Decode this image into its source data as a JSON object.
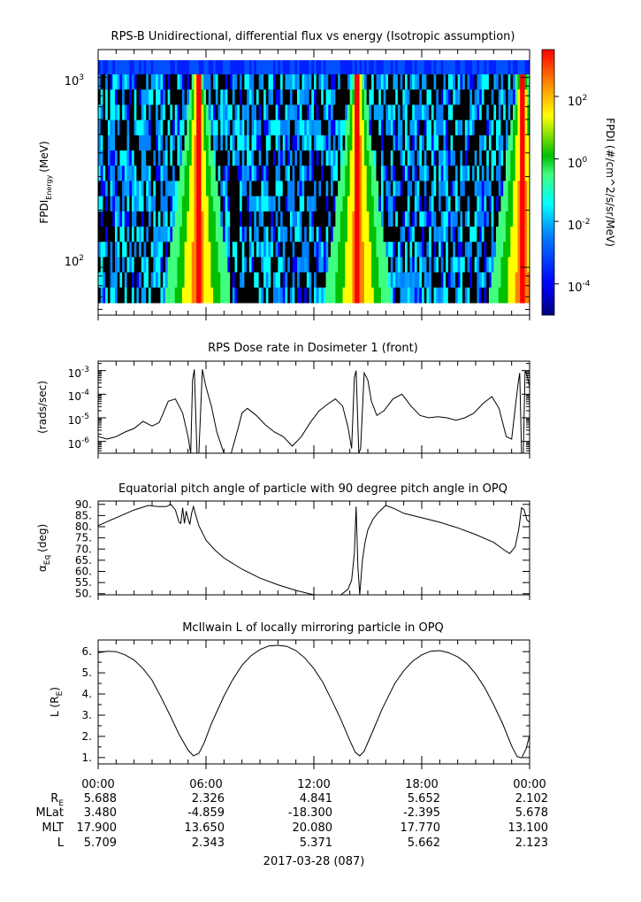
{
  "chart_data": [
    {
      "type": "heatmap",
      "title": "RPS-B  Unidirectional, differential flux vs energy (Isotropic assumption)",
      "ylabel": "FPDI",
      "ylabel_sub": "Energy",
      "ylabel_unit": "(MeV)",
      "y_scale": "log",
      "ylim": [
        56,
        1400
      ],
      "y_ticks": [
        {
          "value": 100,
          "base": "10",
          "exp": "2"
        },
        {
          "value": 1000,
          "base": "10",
          "exp": "3"
        }
      ],
      "xlim_hours": [
        0,
        24
      ],
      "colorbar": {
        "label": "FPDI (#/cm^2/s/sr/MeV)",
        "scale": "log",
        "range_log10": [
          -5,
          3.5
        ],
        "ticks": [
          {
            "exp": "2",
            "log": 2
          },
          {
            "exp": "0",
            "log": 0
          },
          {
            "exp": "-2",
            "log": -2
          },
          {
            "exp": "-4",
            "log": -4
          }
        ],
        "palette": [
          "#00007f",
          "#0000ff",
          "#0080ff",
          "#00ffff",
          "#40ff80",
          "#00c000",
          "#ffff00",
          "#ff8000",
          "#ff0000"
        ]
      },
      "peaks_hours": [
        5.55,
        14.45,
        23.6
      ]
    },
    {
      "type": "line",
      "title": "RPS  Dose rate in Dosimeter 1 (front)",
      "ylabel": "(rads/sec)",
      "y_scale": "log",
      "ylim_log10": [
        -6.5,
        -2.6
      ],
      "y_ticks": [
        {
          "base": "10",
          "exp": "-3",
          "log": -3
        },
        {
          "base": "10",
          "exp": "-4",
          "log": -4
        },
        {
          "base": "10",
          "exp": "-5",
          "log": -5
        },
        {
          "base": "10",
          "exp": "-6",
          "log": -6
        }
      ],
      "x_hours": [
        0,
        0.5,
        1.0,
        1.5,
        2.0,
        2.5,
        3.0,
        3.4,
        3.9,
        4.3,
        4.7,
        5.0,
        5.15,
        5.25,
        5.35,
        5.5,
        5.6,
        5.8,
        6.0,
        6.3,
        6.6,
        7.0,
        7.4,
        7.8,
        8.0,
        8.3,
        8.8,
        9.3,
        9.8,
        10.3,
        10.8,
        11.3,
        11.8,
        12.3,
        12.8,
        13.2,
        13.6,
        13.9,
        14.1,
        14.25,
        14.35,
        14.5,
        14.6,
        14.8,
        15.0,
        15.2,
        15.5,
        15.9,
        16.4,
        16.9,
        17.4,
        17.9,
        18.4,
        18.9,
        19.4,
        19.9,
        20.4,
        20.9,
        21.4,
        21.9,
        22.3,
        22.7,
        23.0,
        23.2,
        23.35,
        23.45,
        23.55,
        23.65,
        23.75,
        23.85,
        24.0
      ],
      "y_log10": [
        -5.8,
        -5.9,
        -5.8,
        -5.6,
        -5.45,
        -5.15,
        -5.35,
        -5.2,
        -4.3,
        -4.2,
        -4.8,
        -5.8,
        -6.5,
        -3.4,
        -2.95,
        -6.5,
        -6.5,
        -2.95,
        -3.7,
        -4.5,
        -5.6,
        -6.5,
        -6.5,
        -5.4,
        -4.8,
        -4.6,
        -4.9,
        -5.3,
        -5.6,
        -5.8,
        -6.2,
        -5.8,
        -5.2,
        -4.7,
        -4.4,
        -4.2,
        -4.5,
        -5.4,
        -6.3,
        -3.3,
        -3.0,
        -6.5,
        -6.3,
        -3.1,
        -3.4,
        -4.3,
        -4.9,
        -4.7,
        -4.2,
        -4.0,
        -4.5,
        -4.9,
        -5.0,
        -4.95,
        -5.0,
        -5.1,
        -5.0,
        -4.8,
        -4.4,
        -4.1,
        -4.6,
        -5.8,
        -5.9,
        -4.6,
        -3.6,
        -3.1,
        -6.5,
        -6.5,
        -3.0,
        -3.2,
        -3.7
      ]
    },
    {
      "type": "line",
      "title": "Equatorial pitch angle of particle with 90 degree pitch angle in OPQ",
      "ylabel": "α",
      "ylabel_sub": "Eq",
      "ylabel_unit": "(deg)",
      "ylim": [
        49.5,
        91.5
      ],
      "y_ticks": [
        50,
        55,
        60,
        65,
        70,
        75,
        80,
        85,
        90
      ],
      "x_hours": [
        0,
        1.0,
        2.0,
        2.8,
        3.3,
        3.8,
        4.05,
        4.3,
        4.5,
        4.6,
        4.7,
        4.8,
        4.9,
        5.0,
        5.1,
        5.2,
        5.3,
        5.4,
        5.6,
        6.0,
        6.5,
        7.0,
        8.0,
        9.0,
        10.0,
        11.0,
        11.5,
        12.0,
        12.5,
        13.0,
        13.5,
        13.9,
        14.1,
        14.25,
        14.35,
        14.45,
        14.55,
        14.7,
        14.85,
        15.0,
        15.3,
        15.6,
        16.0,
        16.5,
        17.0,
        18.0,
        19.0,
        20.0,
        21.0,
        22.0,
        22.6,
        22.9,
        23.2,
        23.4,
        23.55,
        23.7,
        23.85,
        24.0
      ],
      "y": [
        80.5,
        84,
        87.5,
        89.5,
        89.0,
        89.0,
        90.0,
        87.5,
        82.0,
        81.5,
        88.5,
        81.5,
        87.0,
        83.5,
        81.0,
        86.0,
        89.0,
        86.0,
        80.5,
        74.0,
        69.5,
        66.0,
        61.0,
        57.0,
        54.0,
        51.5,
        50.5,
        49.5,
        49.5,
        49.5,
        49.5,
        52.0,
        56.0,
        68.0,
        89.0,
        62.0,
        49.5,
        65.0,
        73.0,
        78.5,
        83.5,
        86.5,
        89.5,
        88.0,
        86.0,
        84.0,
        82.0,
        79.5,
        76.5,
        73.0,
        69.5,
        68.0,
        71.0,
        79.0,
        88.5,
        87.5,
        83.0,
        82.0
      ]
    },
    {
      "type": "line",
      "title": "McIlwain L of locally mirroring particle in OPQ",
      "ylabel": "L (R",
      "ylabel_sub": "E",
      "ylabel_unit": ")",
      "ylim": [
        0.7,
        6.55
      ],
      "y_ticks": [
        1.0,
        2.0,
        3.0,
        4.0,
        5.0,
        6.0
      ],
      "tick_labels": [
        "1.",
        "2.",
        "3.",
        "4.",
        "5.",
        "6."
      ],
      "x_hours": [
        0,
        0.5,
        1.0,
        1.5,
        2.0,
        2.5,
        3.0,
        3.5,
        4.0,
        4.5,
        5.0,
        5.3,
        5.6,
        5.9,
        6.3,
        7.0,
        7.5,
        8.0,
        8.5,
        9.0,
        9.5,
        10.0,
        10.5,
        11.0,
        11.5,
        12.0,
        12.5,
        13.0,
        13.5,
        14.0,
        14.3,
        14.55,
        14.8,
        15.2,
        15.8,
        16.5,
        17.0,
        17.5,
        18.0,
        18.5,
        19.0,
        19.5,
        20.0,
        20.5,
        21.0,
        21.5,
        22.0,
        22.5,
        23.0,
        23.3,
        23.55,
        23.8,
        24.0
      ],
      "y": [
        5.95,
        6.02,
        6.0,
        5.85,
        5.6,
        5.2,
        4.65,
        3.85,
        3.0,
        2.1,
        1.35,
        1.08,
        1.2,
        1.7,
        2.6,
        3.9,
        4.7,
        5.35,
        5.8,
        6.1,
        6.27,
        6.3,
        6.25,
        6.05,
        5.7,
        5.2,
        4.55,
        3.7,
        2.8,
        1.8,
        1.25,
        1.08,
        1.3,
        2.1,
        3.3,
        4.5,
        5.1,
        5.55,
        5.85,
        6.02,
        6.05,
        5.95,
        5.75,
        5.45,
        4.95,
        4.3,
        3.5,
        2.6,
        1.55,
        1.05,
        0.98,
        1.4,
        2.05
      ]
    }
  ],
  "x_axis": {
    "tick_labels": [
      "00:00",
      "06:00",
      "12:00",
      "18:00",
      "00:00"
    ],
    "rows": [
      {
        "label": "R",
        "label_sub": "E",
        "values": [
          "5.688",
          "2.326",
          "4.841",
          "5.652",
          "2.102"
        ]
      },
      {
        "label": "MLat",
        "values": [
          "3.480",
          "-4.859",
          "-18.300",
          "-2.395",
          "5.678"
        ]
      },
      {
        "label": "MLT",
        "values": [
          "17.900",
          "13.650",
          "20.080",
          "17.770",
          "13.100"
        ]
      },
      {
        "label": "L",
        "values": [
          "5.709",
          "2.343",
          "5.371",
          "5.662",
          "2.123"
        ]
      }
    ],
    "date_label": "2017-03-28 (087)"
  }
}
